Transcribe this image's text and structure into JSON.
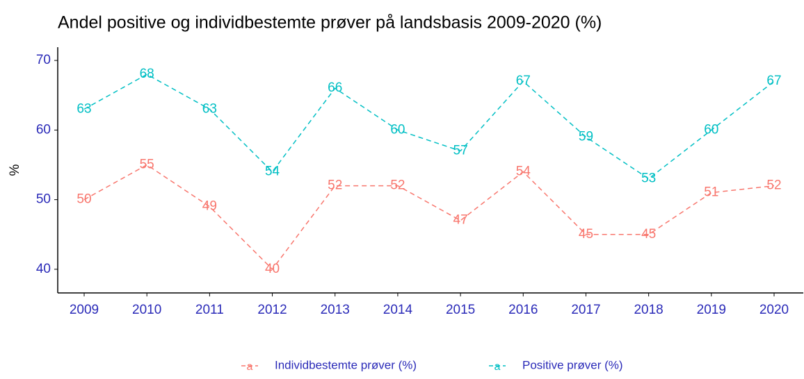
{
  "chart_data": {
    "type": "line",
    "title": "Andel positive og individbestemte prøver på landsbasis 2009-2020 (%)",
    "y_label": "%",
    "categories": [
      "2009",
      "2010",
      "2011",
      "2012",
      "2013",
      "2014",
      "2015",
      "2016",
      "2017",
      "2018",
      "2019",
      "2020"
    ],
    "series": [
      {
        "name": "Individbestemte prøver (%)",
        "color": "#F8766D",
        "values": [
          50,
          55,
          49,
          40,
          52,
          52,
          47,
          54,
          45,
          45,
          51,
          52
        ]
      },
      {
        "name": "Positive prøver (%)",
        "color": "#00BFC4",
        "values": [
          63,
          68,
          63,
          54,
          66,
          60,
          57,
          67,
          59,
          53,
          60,
          67
        ]
      }
    ],
    "ylim": [
      36.6,
      71.9
    ],
    "yticks": [
      40,
      50,
      60,
      70
    ],
    "grid": false,
    "legend": "bottom"
  }
}
